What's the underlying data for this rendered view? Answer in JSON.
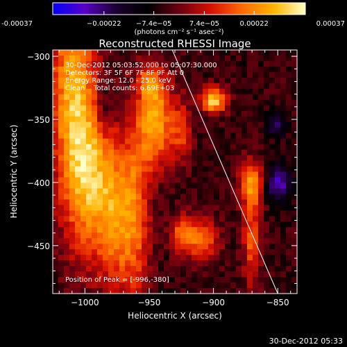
{
  "chart_data": {
    "type": "heatmap",
    "title": "Reconstructed RHESSI Image",
    "xlabel": "Heliocentric X (arcsec)",
    "ylabel": "Heliocentric Y (arcsec)",
    "xlim": [
      -1025,
      -835
    ],
    "ylim": [
      -488,
      -295
    ],
    "x_ticks": [
      -1000,
      -950,
      -900,
      -850
    ],
    "x_tick_labels": [
      "−1000",
      "−950",
      "−900",
      "−850"
    ],
    "y_ticks": [
      -300,
      -350,
      -400,
      -450
    ],
    "y_tick_labels": [
      "−300",
      "−350",
      "−400",
      "−450"
    ],
    "colorbar": {
      "range": [
        -0.00037,
        0.00037
      ],
      "ticks": [
        -0.00037,
        -0.00022,
        -7.4e-05,
        7.4e-05,
        0.00022,
        0.00037
      ],
      "tick_labels": [
        "-0.00037",
        "−0.00022",
        "−7.4e−05",
        "7.4e−05",
        "0.00022",
        "0.00037"
      ],
      "unit_label": "(photons cm⁻² s⁻¹ asec⁻²)",
      "colors": [
        "#0000ff",
        "#5a00c8",
        "#1a0030",
        "#000000",
        "#6a0010",
        "#d81000",
        "#ff6a00",
        "#ffb400",
        "#ffffc8"
      ]
    },
    "annotations": [
      "30-Dec-2012 05:03:52.000 to 05:07:30.000",
      "Detectors: 3F 5F 6F 7F 8F 9F Att 0",
      "Energy Range: 12.0 - 25.0 keV",
      "Clean    Total counts: 6.69E+03"
    ],
    "peak_label": "Position of Peak = [-996,-380]",
    "peak": [
      -996,
      -380
    ],
    "limb_line": [
      [
        -932,
        -295
      ],
      [
        -850,
        -488
      ]
    ],
    "bright_sources": [
      {
        "x": -1010,
        "y": -320,
        "sx": 12,
        "sy": 60,
        "level": 0.75
      },
      {
        "x": -996,
        "y": -395,
        "sx": 14,
        "sy": 45,
        "level": 0.8
      },
      {
        "x": -975,
        "y": -430,
        "sx": 10,
        "sy": 40,
        "level": 0.55
      },
      {
        "x": -960,
        "y": -420,
        "sx": 8,
        "sy": 55,
        "level": 0.5
      },
      {
        "x": -945,
        "y": -350,
        "sx": 9,
        "sy": 25,
        "level": 0.85
      },
      {
        "x": -925,
        "y": -360,
        "sx": 6,
        "sy": 18,
        "level": 0.45
      },
      {
        "x": -900,
        "y": -335,
        "sx": 7,
        "sy": 7,
        "level": 0.95
      },
      {
        "x": -910,
        "y": -445,
        "sx": 10,
        "sy": 12,
        "level": 0.6
      },
      {
        "x": -925,
        "y": -440,
        "sx": 6,
        "sy": 10,
        "level": 0.5
      },
      {
        "x": -870,
        "y": -400,
        "sx": 7,
        "sy": 12,
        "level": 0.75
      },
      {
        "x": -870,
        "y": -445,
        "sx": 5,
        "sy": 25,
        "level": 0.55
      },
      {
        "x": -950,
        "y": -320,
        "sx": 6,
        "sy": 8,
        "level": 0.45
      }
    ],
    "dark_regions": [
      {
        "x": -850,
        "y": -400,
        "sx": 8,
        "sy": 10,
        "level": -0.6
      },
      {
        "x": -850,
        "y": -355,
        "sx": 6,
        "sy": 6,
        "level": -0.45
      },
      {
        "x": -985,
        "y": -340,
        "sx": 6,
        "sy": 18,
        "level": -0.3
      }
    ]
  },
  "footer_timestamp": "30-Dec-2012 05:33"
}
